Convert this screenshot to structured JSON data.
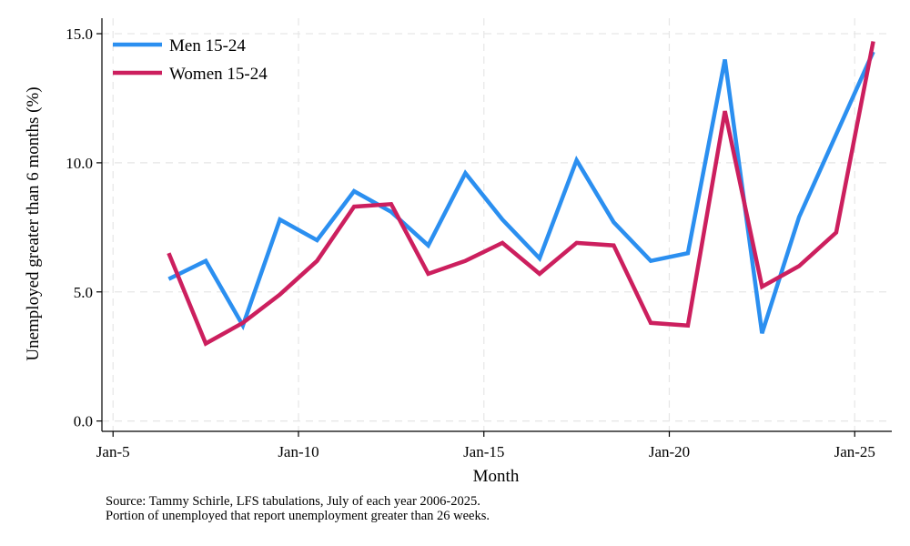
{
  "chart_data": {
    "type": "line",
    "xlabel": "Month",
    "ylabel": "Unemployed greater than 6 months (%)",
    "x_ticks": [
      "Jan-5",
      "Jan-10",
      "Jan-15",
      "Jan-20",
      "Jan-25"
    ],
    "y_ticks": [
      "0.0",
      "5.0",
      "10.0",
      "15.0"
    ],
    "xlim": [
      2004.7,
      2026.0
    ],
    "ylim": [
      -0.4,
      15.6
    ],
    "grid": true,
    "legend_position": "top-left",
    "x": [
      2006.5,
      2007.5,
      2008.5,
      2009.5,
      2010.5,
      2011.5,
      2012.5,
      2013.5,
      2014.5,
      2015.5,
      2016.5,
      2017.5,
      2018.5,
      2019.5,
      2020.5,
      2021.5,
      2022.5,
      2023.5,
      2024.5,
      2025.5
    ],
    "series": [
      {
        "name": "Men 15-24",
        "color": "#2b8ff0",
        "values": [
          5.5,
          6.2,
          3.7,
          7.8,
          7.0,
          8.9,
          8.1,
          6.8,
          9.6,
          7.8,
          6.3,
          10.1,
          7.7,
          6.2,
          6.5,
          14.0,
          3.4,
          7.9,
          11.1,
          14.3
        ]
      },
      {
        "name": "Women 15-24",
        "color": "#cc1f5e",
        "values": [
          6.5,
          3.0,
          3.8,
          4.9,
          6.2,
          8.3,
          8.4,
          5.7,
          6.2,
          6.9,
          5.7,
          6.9,
          6.8,
          3.8,
          3.7,
          12.0,
          5.2,
          6.0,
          7.3,
          14.7
        ]
      }
    ]
  },
  "notes": {
    "source_line": "Source: Tammy Schirle, LFS tabulations, July of each year 2006-2025.",
    "description_line": "Portion of unemployed that report unemployment greater than 26 weeks."
  }
}
